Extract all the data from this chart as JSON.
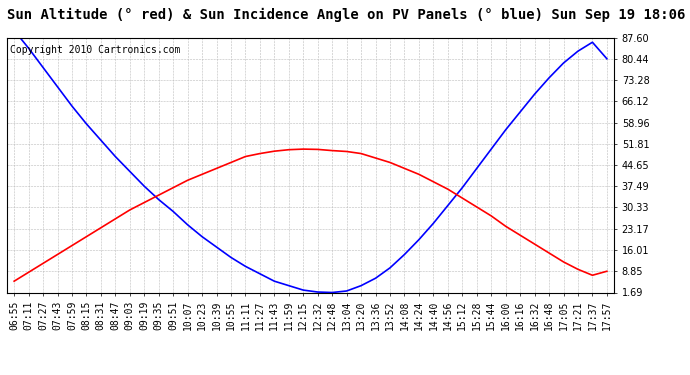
{
  "title": "Sun Altitude (° red) & Sun Incidence Angle on PV Panels (° blue) Sun Sep 19 18:06",
  "copyright": "Copyright 2010 Cartronics.com",
  "yticks": [
    1.69,
    8.85,
    16.01,
    23.17,
    30.33,
    37.49,
    44.65,
    51.81,
    58.96,
    66.12,
    73.28,
    80.44,
    87.6
  ],
  "ymin": 1.69,
  "ymax": 87.6,
  "x_labels": [
    "06:55",
    "07:11",
    "07:27",
    "07:43",
    "07:59",
    "08:15",
    "08:31",
    "08:47",
    "09:03",
    "09:19",
    "09:35",
    "09:51",
    "10:07",
    "10:23",
    "10:39",
    "10:55",
    "11:11",
    "11:27",
    "11:43",
    "11:59",
    "12:15",
    "12:32",
    "12:48",
    "13:04",
    "13:20",
    "13:36",
    "13:52",
    "14:08",
    "14:24",
    "14:40",
    "14:56",
    "15:12",
    "15:28",
    "15:44",
    "16:00",
    "16:16",
    "16:32",
    "16:48",
    "17:05",
    "17:21",
    "17:37",
    "17:57"
  ],
  "blue_y": [
    90.0,
    84.0,
    77.5,
    71.0,
    64.5,
    58.5,
    53.0,
    47.5,
    42.5,
    37.5,
    33.0,
    29.0,
    24.5,
    20.5,
    17.0,
    13.5,
    10.5,
    8.0,
    5.5,
    4.0,
    2.5,
    1.85,
    1.69,
    2.2,
    4.0,
    6.5,
    10.0,
    14.5,
    19.5,
    25.0,
    31.0,
    37.0,
    43.5,
    50.0,
    56.5,
    62.5,
    68.5,
    74.0,
    79.0,
    83.0,
    86.0,
    80.44
  ],
  "red_y": [
    5.5,
    8.5,
    11.5,
    14.5,
    17.5,
    20.5,
    23.5,
    26.5,
    29.5,
    32.0,
    34.5,
    37.0,
    39.5,
    41.5,
    43.5,
    45.5,
    47.5,
    48.5,
    49.3,
    49.8,
    50.0,
    49.9,
    49.5,
    49.2,
    48.5,
    47.0,
    45.5,
    43.5,
    41.5,
    39.0,
    36.5,
    33.5,
    30.5,
    27.5,
    24.0,
    21.0,
    18.0,
    15.0,
    12.0,
    9.5,
    7.5,
    8.85
  ],
  "blue_color": "blue",
  "red_color": "red",
  "bg_color": "white",
  "grid_color": "#bbbbbb",
  "title_fontsize": 10,
  "tick_fontsize": 7,
  "copyright_fontsize": 7
}
